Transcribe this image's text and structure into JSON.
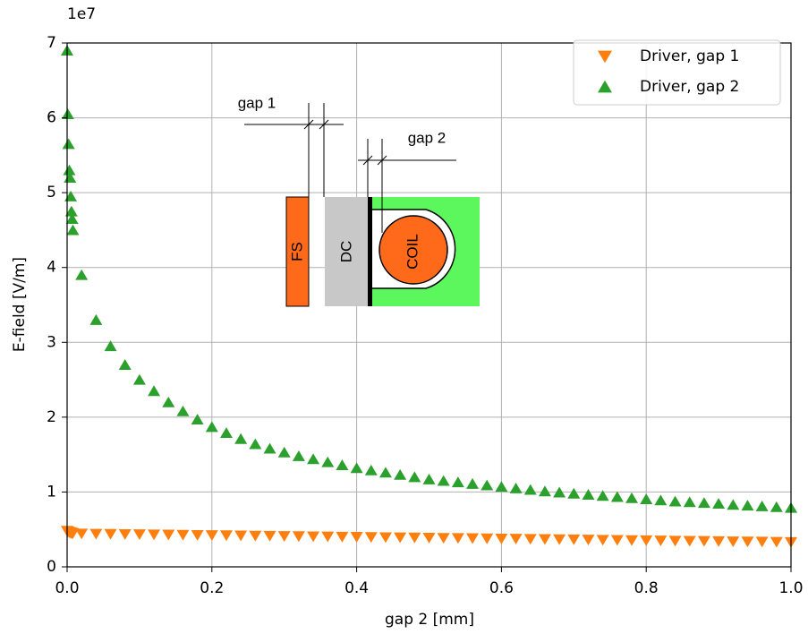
{
  "chart_data": {
    "type": "scatter",
    "xlabel": "gap 2 [mm]",
    "ylabel": "E-field [V/m]",
    "y_offset_label": "1e7",
    "x": [
      0,
      0.001,
      0.002,
      0.003,
      0.004,
      0.005,
      0.006,
      0.007,
      0.008,
      0.02,
      0.04,
      0.06,
      0.08,
      0.1,
      0.12,
      0.14,
      0.16,
      0.18,
      0.2,
      0.22,
      0.24,
      0.26,
      0.28,
      0.3,
      0.32,
      0.34,
      0.36,
      0.38,
      0.4,
      0.42,
      0.44,
      0.46,
      0.48,
      0.5,
      0.52,
      0.54,
      0.56,
      0.58,
      0.6,
      0.62,
      0.64,
      0.66,
      0.68,
      0.7,
      0.72,
      0.74,
      0.76,
      0.78,
      0.8,
      0.82,
      0.84,
      0.86,
      0.88,
      0.9,
      0.92,
      0.94,
      0.96,
      0.98,
      1.0
    ],
    "series": [
      {
        "name": "Driver, gap 1",
        "color": "#ff7f0e",
        "marker": "triangle-down",
        "values": [
          0.48,
          0.47,
          0.47,
          0.46,
          0.46,
          0.46,
          0.45,
          0.45,
          0.45,
          0.443,
          0.44,
          0.438,
          0.436,
          0.434,
          0.431,
          0.429,
          0.427,
          0.424,
          0.422,
          0.42,
          0.417,
          0.415,
          0.413,
          0.41,
          0.408,
          0.406,
          0.404,
          0.401,
          0.399,
          0.397,
          0.394,
          0.392,
          0.39,
          0.388,
          0.385,
          0.383,
          0.381,
          0.378,
          0.376,
          0.374,
          0.371,
          0.369,
          0.367,
          0.365,
          0.362,
          0.36,
          0.358,
          0.355,
          0.353,
          0.351,
          0.348,
          0.346,
          0.344,
          0.342,
          0.339,
          0.337,
          0.335,
          0.332,
          0.33
        ]
      },
      {
        "name": "Driver, gap 2",
        "color": "#2ca02c",
        "marker": "triangle-up",
        "values": [
          6.9,
          6.05,
          5.65,
          5.3,
          5.2,
          4.95,
          4.75,
          4.65,
          4.5,
          3.9,
          3.3,
          2.95,
          2.7,
          2.5,
          2.35,
          2.2,
          2.08,
          1.97,
          1.87,
          1.79,
          1.71,
          1.64,
          1.58,
          1.53,
          1.48,
          1.44,
          1.4,
          1.36,
          1.32,
          1.29,
          1.26,
          1.23,
          1.2,
          1.17,
          1.15,
          1.13,
          1.11,
          1.09,
          1.07,
          1.05,
          1.03,
          1.01,
          0.995,
          0.98,
          0.965,
          0.95,
          0.935,
          0.92,
          0.905,
          0.89,
          0.875,
          0.865,
          0.855,
          0.845,
          0.83,
          0.82,
          0.81,
          0.8,
          0.79
        ]
      }
    ],
    "xlim": [
      0,
      1.0
    ],
    "ylim": [
      0,
      7
    ],
    "xticks": [
      {
        "value": 0,
        "label": "0.0"
      },
      0.2,
      0.4,
      0.6,
      0.8,
      {
        "value": 1.0,
        "label": "1.0"
      }
    ],
    "yticks": [
      0,
      1,
      2,
      3,
      4,
      5,
      6,
      7
    ],
    "grid": true,
    "legend": "upper right",
    "annotations": [
      "gap 1",
      "gap 2",
      "FS",
      "DC",
      "COIL"
    ]
  }
}
